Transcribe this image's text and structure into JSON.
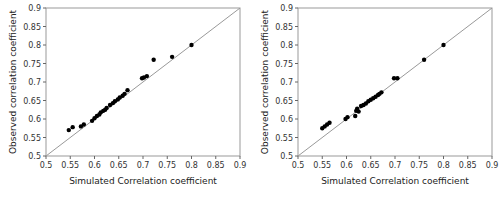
{
  "chart_data": [
    {
      "type": "scatter",
      "x": [
        0.547,
        0.555,
        0.572,
        0.578,
        0.595,
        0.6,
        0.605,
        0.61,
        0.613,
        0.618,
        0.622,
        0.625,
        0.632,
        0.638,
        0.642,
        0.648,
        0.652,
        0.658,
        0.662,
        0.668,
        0.698,
        0.702,
        0.708,
        0.722,
        0.76,
        0.8
      ],
      "values": [
        0.57,
        0.578,
        0.58,
        0.585,
        0.595,
        0.602,
        0.608,
        0.612,
        0.618,
        0.622,
        0.625,
        0.63,
        0.638,
        0.643,
        0.648,
        0.653,
        0.658,
        0.663,
        0.668,
        0.678,
        0.71,
        0.712,
        0.716,
        0.76,
        0.768,
        0.8
      ],
      "color": "black",
      "xlim": [
        0.5,
        0.9
      ],
      "ylim": [
        0.5,
        0.9
      ],
      "xticks": [
        0.5,
        0.55,
        0.6,
        0.65,
        0.7,
        0.75,
        0.8,
        0.85,
        0.9
      ],
      "yticks": [
        0.5,
        0.55,
        0.6,
        0.65,
        0.7,
        0.75,
        0.8,
        0.85,
        0.9
      ],
      "xlabel": "Simulated Correlation coefficient",
      "ylabel": "Observed correlation coefficient"
    },
    {
      "type": "scatter",
      "x": [
        0.55,
        0.555,
        0.56,
        0.565,
        0.598,
        0.602,
        0.618,
        0.62,
        0.622,
        0.625,
        0.63,
        0.635,
        0.64,
        0.645,
        0.65,
        0.655,
        0.66,
        0.665,
        0.668,
        0.672,
        0.698,
        0.705,
        0.76,
        0.8
      ],
      "values": [
        0.575,
        0.58,
        0.585,
        0.59,
        0.6,
        0.605,
        0.608,
        0.622,
        0.628,
        0.62,
        0.635,
        0.638,
        0.642,
        0.648,
        0.652,
        0.656,
        0.66,
        0.665,
        0.668,
        0.672,
        0.71,
        0.71,
        0.76,
        0.8
      ],
      "color": "black",
      "xlim": [
        0.5,
        0.9
      ],
      "ylim": [
        0.5,
        0.9
      ],
      "xticks": [
        0.5,
        0.55,
        0.6,
        0.65,
        0.7,
        0.75,
        0.8,
        0.85,
        0.9
      ],
      "yticks": [
        0.5,
        0.55,
        0.6,
        0.65,
        0.7,
        0.75,
        0.8,
        0.85,
        0.9
      ],
      "xlabel": "Simulated Correlation coefficient",
      "ylabel": "Observed correlation coefficient"
    }
  ]
}
